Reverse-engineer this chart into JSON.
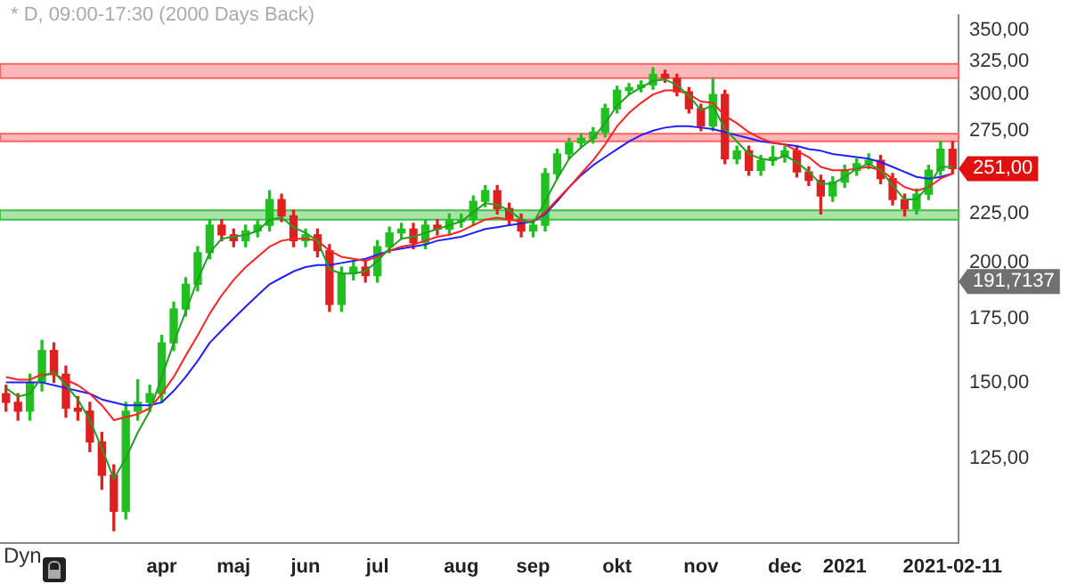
{
  "chart_data": {
    "type": "candlestick",
    "title": "* D, 09:00-17:30 (2000 Days Back)",
    "categories": [
      null,
      null,
      null,
      null,
      null,
      null,
      null,
      null,
      null,
      null,
      null,
      null,
      null,
      "apr",
      null,
      null,
      null,
      null,
      null,
      "maj",
      null,
      null,
      null,
      null,
      null,
      "jun",
      null,
      null,
      null,
      null,
      null,
      "jul",
      null,
      null,
      null,
      null,
      null,
      null,
      "aug",
      null,
      null,
      null,
      null,
      null,
      "sep",
      null,
      null,
      null,
      null,
      null,
      null,
      "okt",
      null,
      null,
      null,
      null,
      null,
      null,
      "nov",
      null,
      null,
      null,
      null,
      null,
      null,
      "dec",
      null,
      null,
      null,
      null,
      "2021",
      null,
      null,
      null,
      null,
      null,
      null,
      null,
      null,
      "2021-02-11"
    ],
    "ohlc": [
      [
        146,
        149,
        140,
        143
      ],
      [
        143,
        146,
        137,
        140
      ],
      [
        140,
        153,
        137,
        150
      ],
      [
        150,
        166,
        147,
        162
      ],
      [
        162,
        165,
        150,
        153
      ],
      [
        153,
        156,
        138,
        141
      ],
      [
        141,
        145,
        137,
        140
      ],
      [
        140,
        143,
        127,
        130
      ],
      [
        130,
        133,
        116,
        120
      ],
      [
        120,
        123,
        105,
        110
      ],
      [
        110,
        143,
        108,
        140
      ],
      [
        140,
        151,
        137,
        143
      ],
      [
        143,
        149,
        140,
        146
      ],
      [
        146,
        168,
        143,
        165
      ],
      [
        165,
        182,
        162,
        179
      ],
      [
        179,
        193,
        176,
        190
      ],
      [
        190,
        208,
        187,
        205
      ],
      [
        205,
        222,
        202,
        219
      ],
      [
        219,
        222,
        211,
        214
      ],
      [
        214,
        217,
        208,
        211
      ],
      [
        211,
        219,
        208,
        216
      ],
      [
        216,
        222,
        213,
        219
      ],
      [
        219,
        238,
        216,
        233
      ],
      [
        233,
        236,
        221,
        224
      ],
      [
        224,
        227,
        208,
        211
      ],
      [
        211,
        217,
        208,
        214
      ],
      [
        214,
        217,
        203,
        206
      ],
      [
        206,
        209,
        178,
        181
      ],
      [
        181,
        198,
        178,
        195
      ],
      [
        195,
        201,
        192,
        198
      ],
      [
        198,
        201,
        191,
        194
      ],
      [
        194,
        211,
        191,
        208
      ],
      [
        208,
        218,
        205,
        215
      ],
      [
        215,
        220,
        212,
        217
      ],
      [
        217,
        220,
        207,
        210
      ],
      [
        210,
        222,
        207,
        219
      ],
      [
        219,
        222,
        214,
        217
      ],
      [
        217,
        225,
        214,
        222
      ],
      [
        221,
        225,
        218,
        222
      ],
      [
        222,
        235,
        219,
        232
      ],
      [
        232,
        241,
        229,
        238
      ],
      [
        238,
        241,
        225,
        228
      ],
      [
        228,
        231,
        219,
        222
      ],
      [
        222,
        225,
        213,
        216
      ],
      [
        216,
        222,
        213,
        219
      ],
      [
        219,
        251,
        216,
        248
      ],
      [
        248,
        263,
        245,
        260
      ],
      [
        260,
        270,
        257,
        267
      ],
      [
        267,
        273,
        264,
        270
      ],
      [
        270,
        277,
        267,
        274
      ],
      [
        274,
        293,
        271,
        290
      ],
      [
        290,
        306,
        287,
        303
      ],
      [
        303,
        308,
        300,
        305
      ],
      [
        305,
        310,
        302,
        307
      ],
      [
        307,
        320,
        304,
        315
      ],
      [
        315,
        318,
        309,
        312
      ],
      [
        312,
        315,
        299,
        302
      ],
      [
        302,
        305,
        287,
        290
      ],
      [
        290,
        293,
        275,
        278
      ],
      [
        278,
        312,
        275,
        300
      ],
      [
        300,
        303,
        254,
        257
      ],
      [
        257,
        265,
        254,
        262
      ],
      [
        262,
        265,
        247,
        250
      ],
      [
        250,
        259,
        247,
        256
      ],
      [
        256,
        265,
        253,
        258
      ],
      [
        258,
        265,
        255,
        262
      ],
      [
        262,
        265,
        246,
        249
      ],
      [
        249,
        252,
        241,
        244
      ],
      [
        244,
        247,
        225,
        235
      ],
      [
        235,
        246,
        232,
        243
      ],
      [
        243,
        253,
        240,
        250
      ],
      [
        250,
        257,
        247,
        254
      ],
      [
        254,
        260,
        251,
        256
      ],
      [
        256,
        259,
        242,
        245
      ],
      [
        245,
        248,
        230,
        233
      ],
      [
        233,
        236,
        224,
        228
      ],
      [
        228,
        239,
        225,
        236
      ],
      [
        236,
        253,
        233,
        250
      ],
      [
        250,
        268,
        247,
        263
      ],
      [
        263,
        268,
        248,
        251
      ]
    ],
    "colors": [
      "#e02020",
      "#e02020",
      "#20c020",
      "#20c020",
      "#e02020",
      "#e02020",
      "#e02020",
      "#e02020",
      "#e02020",
      "#e02020",
      "#20c020",
      "#20c020",
      "#20c020",
      "#20c020",
      "#20c020",
      "#20c020",
      "#20c020",
      "#20c020",
      "#e02020",
      "#e02020",
      "#20c020",
      "#20c020",
      "#20c020",
      "#e02020",
      "#e02020",
      "#20c020",
      "#e02020",
      "#e02020",
      "#20c020",
      "#20c020",
      "#e02020",
      "#20c020",
      "#20c020",
      "#20c020",
      "#e02020",
      "#20c020",
      "#e02020",
      "#20c020",
      "#20c020",
      "#20c020",
      "#20c020",
      "#e02020",
      "#e02020",
      "#e02020",
      "#20c020",
      "#20c020",
      "#20c020",
      "#20c020",
      "#20c020",
      "#20c020",
      "#20c020",
      "#20c020",
      "#20c020",
      "#20c020",
      "#20c020",
      "#e02020",
      "#e02020",
      "#e02020",
      "#e02020",
      "#20c020",
      "#e02020",
      "#20c020",
      "#e02020",
      "#20c020",
      "#20c020",
      "#20c020",
      "#e02020",
      "#e02020",
      "#e02020",
      "#20c020",
      "#20c020",
      "#20c020",
      "#20c020",
      "#e02020",
      "#e02020",
      "#e02020",
      "#20c020",
      "#20c020",
      "#20c020",
      "#e02020"
    ],
    "series": [
      {
        "type": "line",
        "color": "#20a020",
        "values": [
          148,
          145,
          146,
          152,
          154,
          149,
          144,
          137,
          128,
          119,
          125,
          133,
          140,
          152,
          165,
          178,
          192,
          205,
          212,
          213,
          214,
          216,
          222,
          223,
          218,
          215,
          211,
          197,
          195,
          195,
          196,
          201,
          207,
          212,
          213,
          215,
          217,
          219,
          221,
          226,
          231,
          230,
          227,
          222,
          220,
          232,
          245,
          257,
          264,
          270,
          280,
          292,
          300,
          305,
          310,
          311,
          307,
          299,
          289,
          292,
          276,
          268,
          260,
          257,
          256,
          259,
          255,
          249,
          242,
          242,
          246,
          251,
          254,
          250,
          241,
          233,
          233,
          241,
          252,
          252
        ]
      },
      {
        "type": "line",
        "color": "#ff2020",
        "values": [
          152,
          151,
          151,
          153,
          153,
          151,
          149,
          146,
          142,
          137,
          138,
          139,
          141,
          146,
          152,
          160,
          168,
          177,
          185,
          192,
          198,
          203,
          208,
          211,
          212,
          212,
          211,
          206,
          203,
          202,
          201,
          203,
          206,
          208,
          209,
          211,
          213,
          214,
          216,
          219,
          222,
          223,
          222,
          221,
          221,
          226,
          233,
          240,
          248,
          256,
          266,
          278,
          287,
          294,
          300,
          303,
          303,
          300,
          295,
          294,
          285,
          280,
          274,
          270,
          267,
          266,
          262,
          258,
          252,
          250,
          250,
          251,
          252,
          250,
          245,
          240,
          238,
          240,
          245,
          248
        ]
      },
      {
        "type": "line",
        "color": "#2020ff",
        "values": [
          150,
          150,
          150,
          150,
          149,
          148,
          147,
          146,
          144,
          143,
          142,
          142,
          142,
          143,
          147,
          152,
          158,
          165,
          170,
          175,
          180,
          185,
          190,
          193,
          196,
          198,
          199,
          199,
          200,
          201,
          202,
          204,
          206,
          207,
          208,
          209,
          211,
          212,
          213,
          215,
          217,
          218,
          219,
          220,
          221,
          225,
          232,
          240,
          247,
          253,
          258,
          263,
          268,
          272,
          275,
          277,
          278,
          278,
          277,
          276,
          274,
          272,
          270,
          268,
          267,
          266,
          265,
          263,
          262,
          260,
          259,
          258,
          257,
          255,
          252,
          249,
          246,
          245,
          246,
          248
        ]
      }
    ],
    "bands": [
      {
        "axis": "y",
        "from": 312,
        "to": 323,
        "color": "#ff6060"
      },
      {
        "axis": "y",
        "from": 268,
        "to": 273,
        "color": "#ff6060"
      },
      {
        "axis": "y",
        "from": 222,
        "to": 227,
        "color": "#40c040"
      }
    ],
    "annotations": [
      {
        "text": "251,00",
        "x": "2021-02-11",
        "y": 251
      },
      "Dyn",
      "191,7137"
    ],
    "log": true,
    "ylim": [
      102,
      363
    ],
    "yticks": [
      {
        "value": 125,
        "label": "125,00"
      },
      {
        "value": 150,
        "label": "150,00"
      },
      {
        "value": 175,
        "label": "175,00"
      },
      {
        "value": 200,
        "label": "200,00"
      },
      {
        "value": 225,
        "label": "225,00"
      },
      {
        "value": 275,
        "label": "275,00"
      },
      {
        "value": 300,
        "label": "300,00"
      },
      {
        "value": 325,
        "label": "325,00"
      },
      {
        "value": 350,
        "label": "350,00"
      }
    ],
    "grid": false,
    "legend": false
  }
}
